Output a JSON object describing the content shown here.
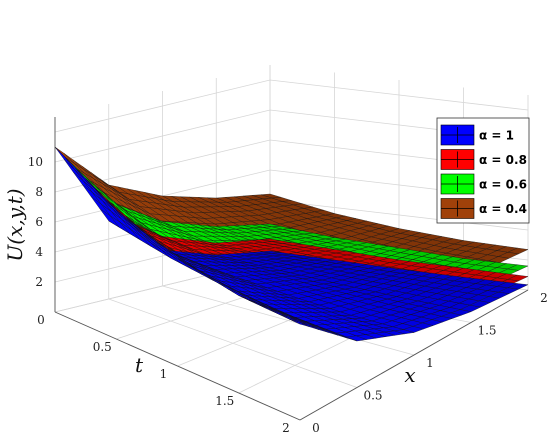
{
  "chart_data": {
    "type": "surface3d",
    "title": "",
    "axes": {
      "x": {
        "label": "x",
        "range": [
          0,
          2
        ],
        "ticks": [
          "0",
          "0.5",
          "1",
          "1.5",
          "2"
        ]
      },
      "t": {
        "label": "t",
        "range": [
          0,
          2
        ],
        "ticks": [
          "0",
          "0.5",
          "1",
          "1.5",
          "2"
        ]
      },
      "z": {
        "label": "U(x,y,t)",
        "range": [
          0,
          13
        ],
        "ticks": [
          "2",
          "4",
          "6",
          "8",
          "10"
        ]
      }
    },
    "grid": true,
    "legend_position": "right",
    "x": [
      0,
      0.5,
      1,
      1.5,
      2
    ],
    "t": [
      0,
      0.5,
      1,
      1.5,
      2
    ],
    "series": [
      {
        "name": "α = 1",
        "color": "#0000ff",
        "values": [
          [
            11.0,
            5.2,
            2.4,
            1.2,
            0.6
          ],
          [
            8.6,
            4.2,
            2.0,
            1.0,
            0.5
          ],
          [
            7.2,
            3.5,
            1.7,
            0.85,
            0.4
          ],
          [
            6.5,
            3.2,
            1.5,
            0.75,
            0.35
          ],
          [
            6.4,
            3.1,
            1.5,
            0.72,
            0.35
          ]
        ]
      },
      {
        "name": "α = 0.8",
        "color": "#ff0000",
        "values": [
          [
            11.0,
            5.8,
            3.3,
            2.0,
            1.4
          ],
          [
            8.6,
            4.6,
            2.7,
            1.7,
            1.2
          ],
          [
            7.2,
            3.9,
            2.3,
            1.45,
            1.0
          ],
          [
            6.5,
            3.5,
            2.1,
            1.3,
            0.95
          ],
          [
            6.4,
            3.4,
            2.05,
            1.3,
            0.9
          ]
        ]
      },
      {
        "name": "α = 0.6",
        "color": "#00ff00",
        "values": [
          [
            11.0,
            6.5,
            4.3,
            3.1,
            2.4
          ],
          [
            8.6,
            5.2,
            3.5,
            2.6,
            2.0
          ],
          [
            7.2,
            4.4,
            3.0,
            2.2,
            1.8
          ],
          [
            6.5,
            4.0,
            2.7,
            2.0,
            1.6
          ],
          [
            6.4,
            3.9,
            2.7,
            2.0,
            1.6
          ]
        ]
      },
      {
        "name": "α = 0.4",
        "color": "#a0410a",
        "values": [
          [
            11.0,
            7.6,
            6.0,
            5.0,
            4.4
          ],
          [
            8.6,
            6.2,
            4.9,
            4.1,
            3.6
          ],
          [
            7.2,
            5.3,
            4.2,
            3.5,
            3.1
          ],
          [
            6.5,
            4.8,
            3.8,
            3.2,
            2.8
          ],
          [
            6.4,
            4.7,
            3.7,
            3.1,
            2.7
          ]
        ]
      }
    ],
    "legend": [
      "α = 1",
      "α = 0.8",
      "α = 0.6",
      "α = 0.4"
    ]
  }
}
